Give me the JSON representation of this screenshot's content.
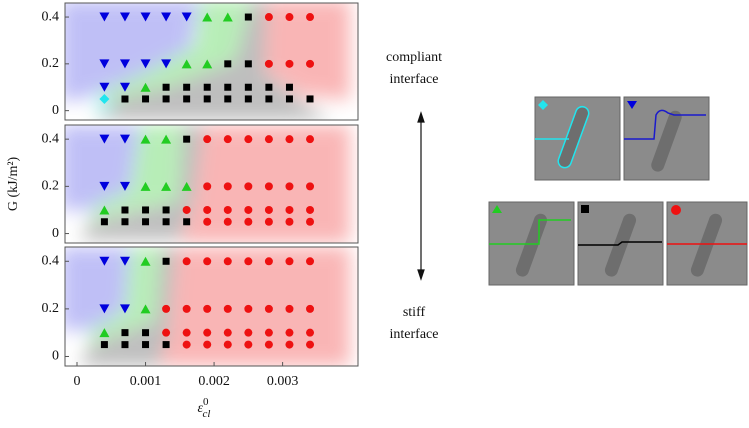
{
  "chart_data": [
    {
      "type": "scatter",
      "xlim": [
        -0.000175,
        0.0041
      ],
      "ylim": [
        -0.04,
        0.46
      ],
      "yticks": [
        0,
        0.2,
        0.4
      ],
      "series": [
        {
          "color": "#0000dd",
          "marker": "triangle-down",
          "x": [
            0.0004,
            0.0007,
            0.001,
            0.0013,
            0.0016,
            0.0004,
            0.0007,
            0.001,
            0.0013,
            0.0004,
            0.0007
          ],
          "values": [
            0.4,
            0.4,
            0.4,
            0.4,
            0.4,
            0.2,
            0.2,
            0.2,
            0.2,
            0.1,
            0.1
          ]
        },
        {
          "color": "#22cc22",
          "marker": "triangle-up",
          "x": [
            0.0019,
            0.0022,
            0.0016,
            0.0019,
            0.001
          ],
          "values": [
            0.4,
            0.4,
            0.2,
            0.2,
            0.1
          ]
        },
        {
          "color": "#000000",
          "marker": "square",
          "x": [
            0.0025,
            0.0022,
            0.0025,
            0.0013,
            0.0016,
            0.0019,
            0.0022,
            0.0025,
            0.0028,
            0.0031,
            0.0007,
            0.001,
            0.0013,
            0.0016,
            0.0019,
            0.0022,
            0.0025,
            0.0028,
            0.0031,
            0.0034
          ],
          "values": [
            0.4,
            0.2,
            0.2,
            0.1,
            0.1,
            0.1,
            0.1,
            0.1,
            0.1,
            0.1,
            0.05,
            0.05,
            0.05,
            0.05,
            0.05,
            0.05,
            0.05,
            0.05,
            0.05,
            0.05
          ]
        },
        {
          "color": "#ee1111",
          "marker": "circle",
          "x": [
            0.0028,
            0.0031,
            0.0034,
            0.0028,
            0.0031,
            0.0034
          ],
          "values": [
            0.4,
            0.4,
            0.4,
            0.2,
            0.2,
            0.2
          ]
        },
        {
          "color": "#22e5ee",
          "marker": "diamond",
          "x": [
            0.0004
          ],
          "values": [
            0.05
          ]
        }
      ]
    },
    {
      "type": "scatter",
      "xlim": [
        -0.000175,
        0.0041
      ],
      "ylim": [
        -0.04,
        0.46
      ],
      "yticks": [
        0,
        0.2,
        0.4
      ],
      "ylabel": "G (kJ/m²)",
      "series": [
        {
          "color": "#0000dd",
          "marker": "triangle-down",
          "x": [
            0.0004,
            0.0007,
            0.0004,
            0.0007
          ],
          "values": [
            0.4,
            0.4,
            0.2,
            0.2
          ]
        },
        {
          "color": "#22cc22",
          "marker": "triangle-up",
          "x": [
            0.001,
            0.0013,
            0.001,
            0.0013,
            0.0016,
            0.0004
          ],
          "values": [
            0.4,
            0.4,
            0.2,
            0.2,
            0.2,
            0.1
          ]
        },
        {
          "color": "#000000",
          "marker": "square",
          "x": [
            0.0016,
            0.0007,
            0.001,
            0.0013,
            0.0004,
            0.0007,
            0.001,
            0.0013,
            0.0016
          ],
          "values": [
            0.4,
            0.1,
            0.1,
            0.1,
            0.05,
            0.05,
            0.05,
            0.05,
            0.05
          ]
        },
        {
          "color": "#ee1111",
          "marker": "circle",
          "x": [
            0.0019,
            0.0022,
            0.0025,
            0.0028,
            0.0031,
            0.0034,
            0.0019,
            0.0022,
            0.0025,
            0.0028,
            0.0031,
            0.0034,
            0.0016,
            0.0019,
            0.0022,
            0.0025,
            0.0028,
            0.0031,
            0.0034,
            0.0019,
            0.0022,
            0.0025,
            0.0028,
            0.0031,
            0.0034
          ],
          "values": [
            0.4,
            0.4,
            0.4,
            0.4,
            0.4,
            0.4,
            0.2,
            0.2,
            0.2,
            0.2,
            0.2,
            0.2,
            0.1,
            0.1,
            0.1,
            0.1,
            0.1,
            0.1,
            0.1,
            0.05,
            0.05,
            0.05,
            0.05,
            0.05,
            0.05
          ]
        }
      ]
    },
    {
      "type": "scatter",
      "xlim": [
        -0.000175,
        0.0041
      ],
      "ylim": [
        -0.04,
        0.46
      ],
      "yticks": [
        0,
        0.2,
        0.4
      ],
      "xticks": [
        0,
        0.001,
        0.002,
        0.003
      ],
      "xlabel": "ε",
      "xlabel_sup": "0",
      "xlabel_sub": "cl",
      "series": [
        {
          "color": "#0000dd",
          "marker": "triangle-down",
          "x": [
            0.0004,
            0.0007,
            0.0004,
            0.0007
          ],
          "values": [
            0.4,
            0.4,
            0.2,
            0.2
          ]
        },
        {
          "color": "#22cc22",
          "marker": "triangle-up",
          "x": [
            0.001,
            0.001,
            0.0004
          ],
          "values": [
            0.4,
            0.2,
            0.1
          ]
        },
        {
          "color": "#000000",
          "marker": "square",
          "x": [
            0.0013,
            0.0007,
            0.001,
            0.0004,
            0.0007,
            0.001,
            0.0013
          ],
          "values": [
            0.4,
            0.1,
            0.1,
            0.05,
            0.05,
            0.05,
            0.05
          ]
        },
        {
          "color": "#ee1111",
          "marker": "circle",
          "x": [
            0.0016,
            0.0019,
            0.0022,
            0.0025,
            0.0028,
            0.0031,
            0.0034,
            0.0013,
            0.0016,
            0.0019,
            0.0022,
            0.0025,
            0.0028,
            0.0031,
            0.0034,
            0.0013,
            0.0016,
            0.0019,
            0.0022,
            0.0025,
            0.0028,
            0.0031,
            0.0034,
            0.0016,
            0.0019,
            0.0022,
            0.0025,
            0.0028,
            0.0031,
            0.0034
          ],
          "values": [
            0.4,
            0.4,
            0.4,
            0.4,
            0.4,
            0.4,
            0.4,
            0.2,
            0.2,
            0.2,
            0.2,
            0.2,
            0.2,
            0.2,
            0.2,
            0.1,
            0.1,
            0.1,
            0.1,
            0.1,
            0.1,
            0.1,
            0.1,
            0.05,
            0.05,
            0.05,
            0.05,
            0.05,
            0.05,
            0.05
          ]
        }
      ]
    }
  ],
  "annotations": {
    "compliant": "compliant",
    "compliant_2": "interface",
    "stiff": "stiff",
    "stiff_2": "interface"
  }
}
